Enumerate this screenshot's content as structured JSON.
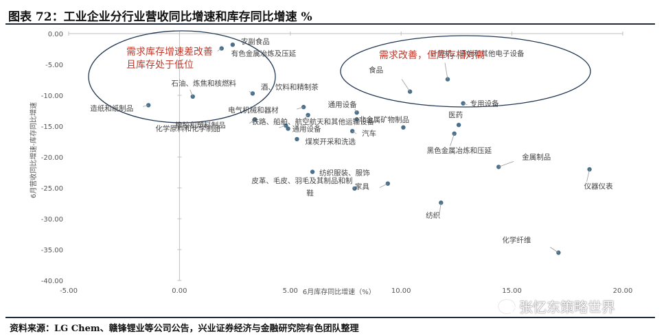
{
  "title": "图表 72：工业企业分行业营收同比增速和库存同比增速 %",
  "source": "资料来源：LG Chem、赣锋锂业等公司公告，兴业证券经济与金融研究院有色团队整理",
  "watermark": "张忆东策略世界",
  "colors": {
    "point": "#4a6f8a",
    "ellipse": "#1f3550",
    "annotation": "#c0392b",
    "axis": "#bfbfbf"
  },
  "chart_data": {
    "type": "scatter",
    "xlabel": "6月库存同比增速（%）",
    "ylabel": "6月营收同比增速-库存同比增速",
    "xlim": [
      -5,
      20
    ],
    "ylim": [
      -40,
      0
    ],
    "xticks": [
      -5,
      0,
      5,
      10,
      15,
      20
    ],
    "yticks": [
      0,
      -5,
      -10,
      -15,
      -20,
      -25,
      -30,
      -35,
      -40
    ],
    "xtick_labels": [
      "-5.00",
      "0.00",
      "5.00",
      "10.00",
      "15.00",
      "20.00"
    ],
    "ytick_labels": [
      "0.00",
      "-5.00",
      "-10.00",
      "-15.00",
      "-20.00",
      "-25.00",
      "-30.00",
      "-35.00",
      "-40.00"
    ],
    "points": [
      {
        "label": "农副食品",
        "x": 2.4,
        "y": -1.8
      },
      {
        "label": "有色金属冶炼及压延",
        "x": 1.9,
        "y": -2.4
      },
      {
        "label": "石油、炼焦和核燃料",
        "x": 0.6,
        "y": -10.2
      },
      {
        "label": "造纸和纸制品",
        "x": -1.4,
        "y": -11.6
      },
      {
        "label": "酒、饮料和精制茶",
        "x": 3.3,
        "y": -9.7
      },
      {
        "label": "电气机械和器材",
        "x": 5.6,
        "y": -11.9
      },
      {
        "label": "橡胶和塑料制品",
        "x": 3.4,
        "y": -13.9
      },
      {
        "label": "铁路、船舶、航空航天和其他运输设备",
        "x": 5.8,
        "y": -13.2
      },
      {
        "label": "化学原料和化学制品",
        "x": 4.8,
        "y": -14.9
      },
      {
        "label": "通用设备",
        "x": 8.0,
        "y": -12.8
      },
      {
        "label": "非金属矿物制品",
        "x": 8.0,
        "y": -13.9
      },
      {
        "label": "通用设备",
        "x": 4.9,
        "y": -15.4
      },
      {
        "label": "汽车",
        "x": 7.8,
        "y": -15.8
      },
      {
        "label": "煤炭开采和洗选",
        "x": 5.3,
        "y": -17.1
      },
      {
        "label": "食品",
        "x": 10.4,
        "y": -9.4
      },
      {
        "label": "计算机、通信和其他电子设备",
        "x": 12.1,
        "y": -7.4
      },
      {
        "label": "专用设备",
        "x": 12.8,
        "y": -11.3
      },
      {
        "label": "医药",
        "x": 12.6,
        "y": -14.8
      },
      {
        "label": "黑色金属冶炼和压延",
        "x": 12.4,
        "y": -16.2
      },
      {
        "label": "",
        "x": 10.1,
        "y": -15.2
      },
      {
        "label": "金属制品",
        "x": 14.4,
        "y": -21.6
      },
      {
        "label": "仪器仪表",
        "x": 18.5,
        "y": -22.0
      },
      {
        "label": "纺织服装、服饰",
        "x": 6.0,
        "y": -22.4
      },
      {
        "label": "皮革、毛皮、羽毛及其制品和制鞋",
        "x": 7.9,
        "y": -25.1
      },
      {
        "label": "家具",
        "x": 9.4,
        "y": -24.3
      },
      {
        "label": "纺织",
        "x": 11.8,
        "y": -27.4
      },
      {
        "label": "化学纤维",
        "x": 17.1,
        "y": -35.5
      }
    ],
    "annotations": [
      {
        "text_lines": [
          "需求库存增速差改善",
          "且库存处于低位"
        ]
      },
      {
        "text_lines": [
          "需求改善，但库存相对高"
        ]
      }
    ]
  }
}
